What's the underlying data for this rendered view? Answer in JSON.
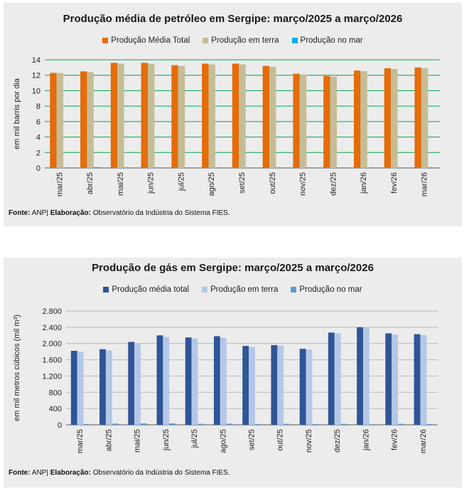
{
  "charts": [
    {
      "title": "Produção média de petróleo em Sergipe: março/2025 a março/2026",
      "ylabel": "em mil barris por dia",
      "source_label": "Fonte:",
      "source_value": "ANP|",
      "elab_label": "Elaboração:",
      "elab_value": "Observatório da Indústria do Sistema FIES."
    },
    {
      "title": "Produção de gás em Sergipe: março/2025 a março/2026",
      "ylabel": "em mil metros cúbicos (mil m³)",
      "source_label": "Fonte:",
      "source_value": "ANP|",
      "elab_label": "Elaboração:",
      "elab_value": "Observatório da Indústria do Sistema FIES."
    }
  ],
  "chart_data": [
    {
      "type": "bar",
      "title": "Produção média de petróleo em Sergipe: março/2025 a março/2026",
      "xlabel": "",
      "ylabel": "em mil barris por dia",
      "ylim": [
        0,
        14
      ],
      "yticks": [
        0,
        2,
        4,
        6,
        8,
        10,
        12,
        14
      ],
      "ytick_labels": [
        "0",
        "2",
        "4",
        "6",
        "8",
        "10",
        "12",
        "14"
      ],
      "grid": true,
      "legend_position": "top",
      "categories": [
        "mar/25",
        "abr/25",
        "mai/25",
        "jun/25",
        "jul/25",
        "ago/25",
        "set/25",
        "out/25",
        "nov/25",
        "dez/25",
        "jan/26",
        "fev/26",
        "mar/26"
      ],
      "series": [
        {
          "name": "Produção Média Total",
          "color": "#e46c0a",
          "values": [
            12.3,
            12.5,
            13.6,
            13.6,
            13.3,
            13.5,
            13.5,
            13.2,
            12.2,
            11.9,
            12.6,
            12.9,
            13.0
          ]
        },
        {
          "name": "Produção em terra",
          "color": "#c4bd97",
          "values": [
            12.3,
            12.4,
            13.5,
            13.5,
            13.2,
            13.4,
            13.4,
            13.1,
            12.1,
            11.8,
            12.5,
            12.8,
            12.9
          ]
        },
        {
          "name": "Produção no mar",
          "color": "#00b0f0",
          "values": [
            0.05,
            0.1,
            0.05,
            0.05,
            0.05,
            0.05,
            0.05,
            0.05,
            0.05,
            0.05,
            0.05,
            0.05,
            0.05
          ]
        }
      ]
    },
    {
      "type": "bar",
      "title": "Produção de gás em Sergipe: março/2025 a março/2026",
      "xlabel": "",
      "ylabel": "em mil metros cúbicos (mil m³)",
      "ylim": [
        0,
        2800
      ],
      "yticks": [
        0,
        400,
        800,
        1200,
        1600,
        2000,
        2400,
        2800
      ],
      "ytick_labels": [
        "0",
        "400",
        "800",
        "1.200",
        "1.600",
        "2.000",
        "2.400",
        "2.800"
      ],
      "grid": true,
      "legend_position": "top",
      "categories": [
        "mar/25",
        "abr/25",
        "mai/25",
        "jun/25",
        "jul/25",
        "ago/25",
        "set/25",
        "out/25",
        "nov/25",
        "dez/25",
        "jan/26",
        "fev/26",
        "mar/26"
      ],
      "series": [
        {
          "name": "Produção média total",
          "color": "#2f5597",
          "values": [
            1820,
            1860,
            2040,
            2200,
            2150,
            2180,
            1940,
            1960,
            1870,
            2270,
            2400,
            2250,
            2230
          ]
        },
        {
          "name": "Produção em terra",
          "color": "#b4c7e7",
          "values": [
            1800,
            1830,
            2000,
            2160,
            2120,
            2140,
            1920,
            1940,
            1850,
            2250,
            2390,
            2220,
            2210
          ]
        },
        {
          "name": "Produção no mar",
          "color": "#5b9bd5",
          "values": [
            20,
            30,
            35,
            35,
            25,
            30,
            20,
            25,
            20,
            25,
            15,
            25,
            20
          ]
        }
      ]
    }
  ]
}
